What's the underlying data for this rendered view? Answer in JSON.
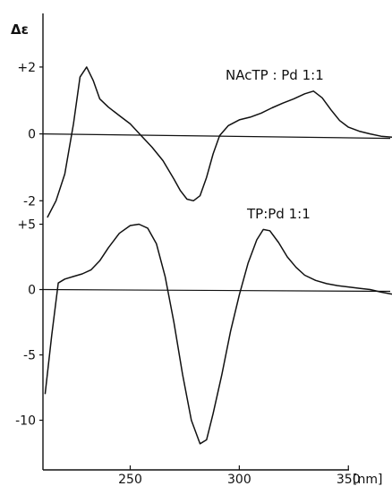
{
  "chart_data": [
    {
      "type": "line",
      "ylabel": "Δε",
      "xlabel": "",
      "title": "NAcTP : Pd 1:1",
      "ylim": [
        -2.5,
        2.8
      ],
      "y_ticks": [
        "+2",
        "0",
        "-2"
      ],
      "y_tick_values": [
        2,
        0,
        -2
      ],
      "series": [
        {
          "x": [
            212,
            216,
            220,
            224,
            227,
            230,
            233,
            236,
            240,
            245,
            250,
            255,
            260,
            265,
            270,
            273,
            276,
            279,
            282,
            285,
            288,
            291,
            295,
            300,
            305,
            310,
            315,
            320,
            325,
            330,
            334,
            338,
            342,
            346,
            350,
            355,
            360,
            365,
            370
          ],
          "y": [
            -2.5,
            -2.0,
            -1.2,
            0.3,
            1.7,
            2.0,
            1.6,
            1.05,
            0.8,
            0.55,
            0.3,
            -0.05,
            -0.4,
            -0.8,
            -1.35,
            -1.7,
            -1.95,
            -2.0,
            -1.85,
            -1.3,
            -0.6,
            -0.05,
            0.25,
            0.42,
            0.5,
            0.62,
            0.78,
            0.92,
            1.05,
            1.2,
            1.28,
            1.08,
            0.72,
            0.4,
            0.2,
            0.08,
            0.0,
            -0.07,
            -0.1
          ]
        }
      ]
    },
    {
      "type": "line",
      "title": "TP:Pd 1:1",
      "xlabel": "[nm]",
      "ylabel": "",
      "xlim": [
        210,
        370
      ],
      "ylim": [
        -13.8,
        6.2
      ],
      "x_ticks": [
        "250",
        "300",
        "350"
      ],
      "x_tick_values": [
        250,
        300,
        350
      ],
      "y_ticks": [
        "+5",
        "0",
        "-5",
        "-10"
      ],
      "y_tick_values": [
        5,
        0,
        -5,
        -10
      ],
      "series": [
        {
          "x": [
            211,
            214,
            217,
            220,
            224,
            228,
            232,
            236,
            240,
            245,
            250,
            254,
            258,
            262,
            266,
            270,
            274,
            278,
            282,
            285,
            288,
            292,
            296,
            300,
            304,
            308,
            311,
            314,
            318,
            322,
            326,
            330,
            335,
            340,
            345,
            350,
            355,
            360,
            365,
            370
          ],
          "y": [
            -8.0,
            -3.5,
            0.5,
            0.8,
            1.0,
            1.2,
            1.5,
            2.2,
            3.2,
            4.3,
            4.9,
            5.0,
            4.7,
            3.5,
            1.0,
            -2.5,
            -6.5,
            -10.0,
            -11.8,
            -11.5,
            -9.5,
            -6.5,
            -3.2,
            -0.4,
            2.0,
            3.8,
            4.6,
            4.5,
            3.6,
            2.5,
            1.7,
            1.1,
            0.7,
            0.45,
            0.3,
            0.2,
            0.1,
            0.0,
            -0.2,
            -0.35
          ]
        }
      ]
    }
  ]
}
